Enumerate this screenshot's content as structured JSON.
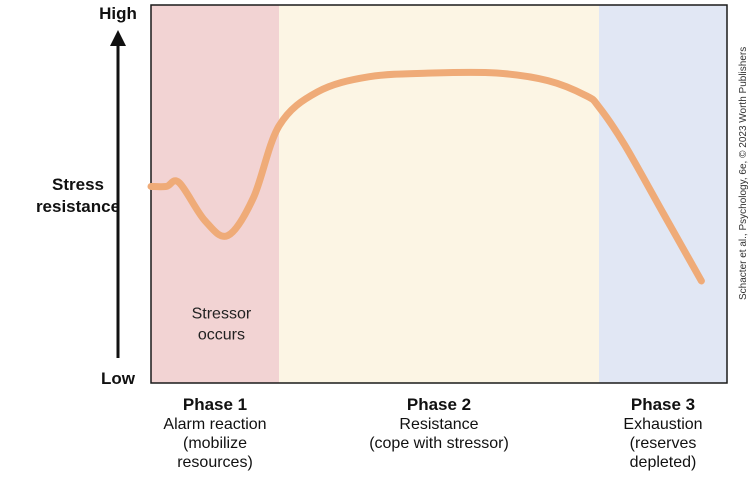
{
  "chart_data": {
    "type": "line",
    "y_axis": {
      "top_label": "High",
      "bottom_label": "Low",
      "title_lines": [
        "Stress",
        "resistance"
      ]
    },
    "phases": [
      {
        "title": "Phase 1",
        "lines": [
          "Alarm reaction",
          "(mobilize",
          "resources)"
        ],
        "color": "#f2d3d3",
        "x_range": [
          0,
          1.0
        ]
      },
      {
        "title": "Phase 2",
        "lines": [
          "Resistance",
          "(cope with stressor)"
        ],
        "color": "#fcf5e4",
        "x_range": [
          1.0,
          3.5
        ]
      },
      {
        "title": "Phase 3",
        "lines": [
          "Exhaustion",
          "(reserves",
          "depleted)"
        ],
        "color": "#e1e7f4",
        "x_range": [
          3.5,
          4.5
        ]
      }
    ],
    "annotation": {
      "lines": [
        "Stressor",
        "occurs"
      ],
      "x": 0.55,
      "y": 0.17
    },
    "series": [
      {
        "color": "#efab78",
        "x": [
          0.0,
          0.12,
          0.22,
          0.42,
          0.6,
          0.8,
          1.0,
          1.3,
          1.7,
          2.2,
          2.7,
          3.1,
          3.4,
          3.5,
          3.7,
          4.0,
          4.15,
          4.3
        ],
        "y": [
          0.52,
          0.52,
          0.53,
          0.43,
          0.39,
          0.49,
          0.68,
          0.77,
          0.81,
          0.82,
          0.82,
          0.8,
          0.76,
          0.73,
          0.63,
          0.45,
          0.36,
          0.27
        ]
      }
    ],
    "xlim": [
      0,
      4.5
    ],
    "ylim": [
      0,
      1
    ],
    "grid": false,
    "legend": "none"
  },
  "credit": "Schacter et al., Psychology, 6e, © 2023 Worth Publishers"
}
